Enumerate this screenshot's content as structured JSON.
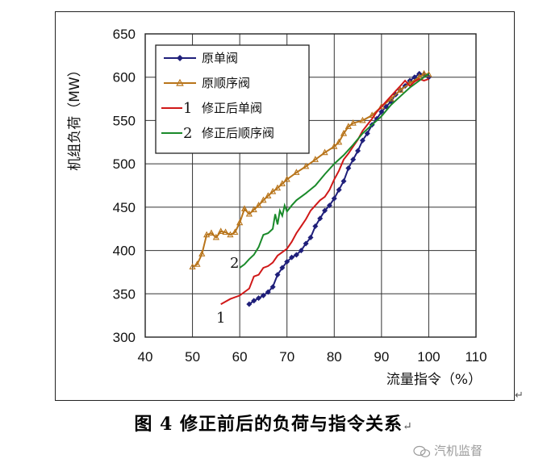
{
  "chart_data": {
    "type": "line",
    "xlabel": "流量指令（%）",
    "ylabel": "机组负荷（MW）",
    "xlim": [
      40,
      110
    ],
    "ylim": [
      300,
      650
    ],
    "x_ticks": [
      40,
      50,
      60,
      70,
      80,
      90,
      100,
      110
    ],
    "y_ticks": [
      300,
      350,
      400,
      450,
      500,
      550,
      600,
      650
    ],
    "grid": true,
    "legend_position": "top-left",
    "annotations": [
      {
        "text": "1",
        "series": "修正后单阀"
      },
      {
        "text": "2",
        "series": "修正后顺序阀"
      }
    ],
    "series": [
      {
        "name": "原单阀",
        "marker": "diamond",
        "color": "#1f1f7a",
        "points": [
          [
            62,
            338
          ],
          [
            63,
            342
          ],
          [
            64,
            345
          ],
          [
            65,
            348
          ],
          [
            66,
            352
          ],
          [
            67,
            358
          ],
          [
            68,
            372
          ],
          [
            69,
            380
          ],
          [
            70,
            387
          ],
          [
            71,
            392
          ],
          [
            72,
            395
          ],
          [
            73,
            400
          ],
          [
            74,
            408
          ],
          [
            75,
            415
          ],
          [
            76,
            428
          ],
          [
            77,
            437
          ],
          [
            78,
            446
          ],
          [
            79,
            452
          ],
          [
            80,
            460
          ],
          [
            81,
            470
          ],
          [
            82,
            480
          ],
          [
            83,
            495
          ],
          [
            84,
            505
          ],
          [
            85,
            515
          ],
          [
            86,
            527
          ],
          [
            87,
            535
          ],
          [
            88,
            545
          ],
          [
            89,
            552
          ],
          [
            90,
            560
          ],
          [
            91,
            566
          ],
          [
            92,
            572
          ],
          [
            93,
            580
          ],
          [
            94,
            585
          ],
          [
            95,
            590
          ],
          [
            96,
            596
          ],
          [
            97,
            600
          ],
          [
            98,
            604
          ],
          [
            99,
            603
          ],
          [
            100,
            600
          ]
        ]
      },
      {
        "name": "原顺序阀",
        "marker": "triangle",
        "color": "#b8741a",
        "points": [
          [
            50,
            381
          ],
          [
            51,
            384
          ],
          [
            52,
            396
          ],
          [
            53,
            418
          ],
          [
            54,
            420
          ],
          [
            55,
            415
          ],
          [
            56,
            422
          ],
          [
            57,
            421
          ],
          [
            58,
            418
          ],
          [
            59,
            421
          ],
          [
            60,
            432
          ],
          [
            61,
            448
          ],
          [
            62,
            442
          ],
          [
            63,
            447
          ],
          [
            64,
            452
          ],
          [
            65,
            458
          ],
          [
            66,
            463
          ],
          [
            67,
            468
          ],
          [
            68,
            472
          ],
          [
            69,
            477
          ],
          [
            70,
            482
          ],
          [
            72,
            490
          ],
          [
            74,
            497
          ],
          [
            76,
            505
          ],
          [
            78,
            513
          ],
          [
            80,
            520
          ],
          [
            81,
            525
          ],
          [
            82,
            535
          ],
          [
            83,
            543
          ],
          [
            84,
            547
          ],
          [
            86,
            550
          ],
          [
            88,
            556
          ],
          [
            90,
            566
          ],
          [
            92,
            575
          ],
          [
            94,
            585
          ],
          [
            96,
            593
          ],
          [
            98,
            600
          ],
          [
            99,
            604
          ],
          [
            100,
            603
          ]
        ]
      },
      {
        "name": "修正后单阀",
        "marker": "none",
        "color": "#d01818",
        "points": [
          [
            56,
            338
          ],
          [
            58,
            344
          ],
          [
            60,
            348
          ],
          [
            62,
            356
          ],
          [
            63,
            370
          ],
          [
            64,
            372
          ],
          [
            65,
            380
          ],
          [
            66,
            382
          ],
          [
            67,
            386
          ],
          [
            68,
            394
          ],
          [
            69,
            398
          ],
          [
            70,
            402
          ],
          [
            71,
            410
          ],
          [
            72,
            420
          ],
          [
            73,
            428
          ],
          [
            74,
            436
          ],
          [
            75,
            446
          ],
          [
            76,
            452
          ],
          [
            77,
            458
          ],
          [
            78,
            462
          ],
          [
            79,
            470
          ],
          [
            80,
            482
          ],
          [
            81,
            492
          ],
          [
            82,
            505
          ],
          [
            83,
            512
          ],
          [
            84,
            520
          ],
          [
            85,
            528
          ],
          [
            86,
            538
          ],
          [
            87,
            545
          ],
          [
            88,
            552
          ],
          [
            89,
            560
          ],
          [
            90,
            566
          ],
          [
            91,
            572
          ],
          [
            92,
            578
          ],
          [
            93,
            584
          ],
          [
            94,
            590
          ],
          [
            95,
            596
          ],
          [
            96,
            590
          ],
          [
            97,
            595
          ],
          [
            98,
            598
          ],
          [
            99,
            596
          ],
          [
            100,
            598
          ]
        ]
      },
      {
        "name": "修正后顺序阀",
        "marker": "none",
        "color": "#1a8a2a",
        "points": [
          [
            60,
            380
          ],
          [
            61,
            384
          ],
          [
            62,
            390
          ],
          [
            63,
            395
          ],
          [
            64,
            404
          ],
          [
            65,
            418
          ],
          [
            66,
            420
          ],
          [
            67,
            425
          ],
          [
            67.5,
            442
          ],
          [
            68,
            430
          ],
          [
            68.5,
            446
          ],
          [
            69,
            440
          ],
          [
            69.5,
            452
          ],
          [
            70,
            445
          ],
          [
            71,
            452
          ],
          [
            72,
            458
          ],
          [
            74,
            466
          ],
          [
            76,
            475
          ],
          [
            78,
            488
          ],
          [
            80,
            500
          ],
          [
            82,
            510
          ],
          [
            84,
            522
          ],
          [
            86,
            535
          ],
          [
            88,
            545
          ],
          [
            90,
            555
          ],
          [
            92,
            568
          ],
          [
            94,
            578
          ],
          [
            96,
            588
          ],
          [
            98,
            596
          ],
          [
            100,
            604
          ]
        ]
      }
    ]
  },
  "caption": {
    "text": "图 4    修正前后的负荷与指令关系",
    "return_mark": "↵"
  },
  "frame_mark": "↵",
  "watermark": {
    "icon": "wechat-icon",
    "text": "汽机监督"
  }
}
